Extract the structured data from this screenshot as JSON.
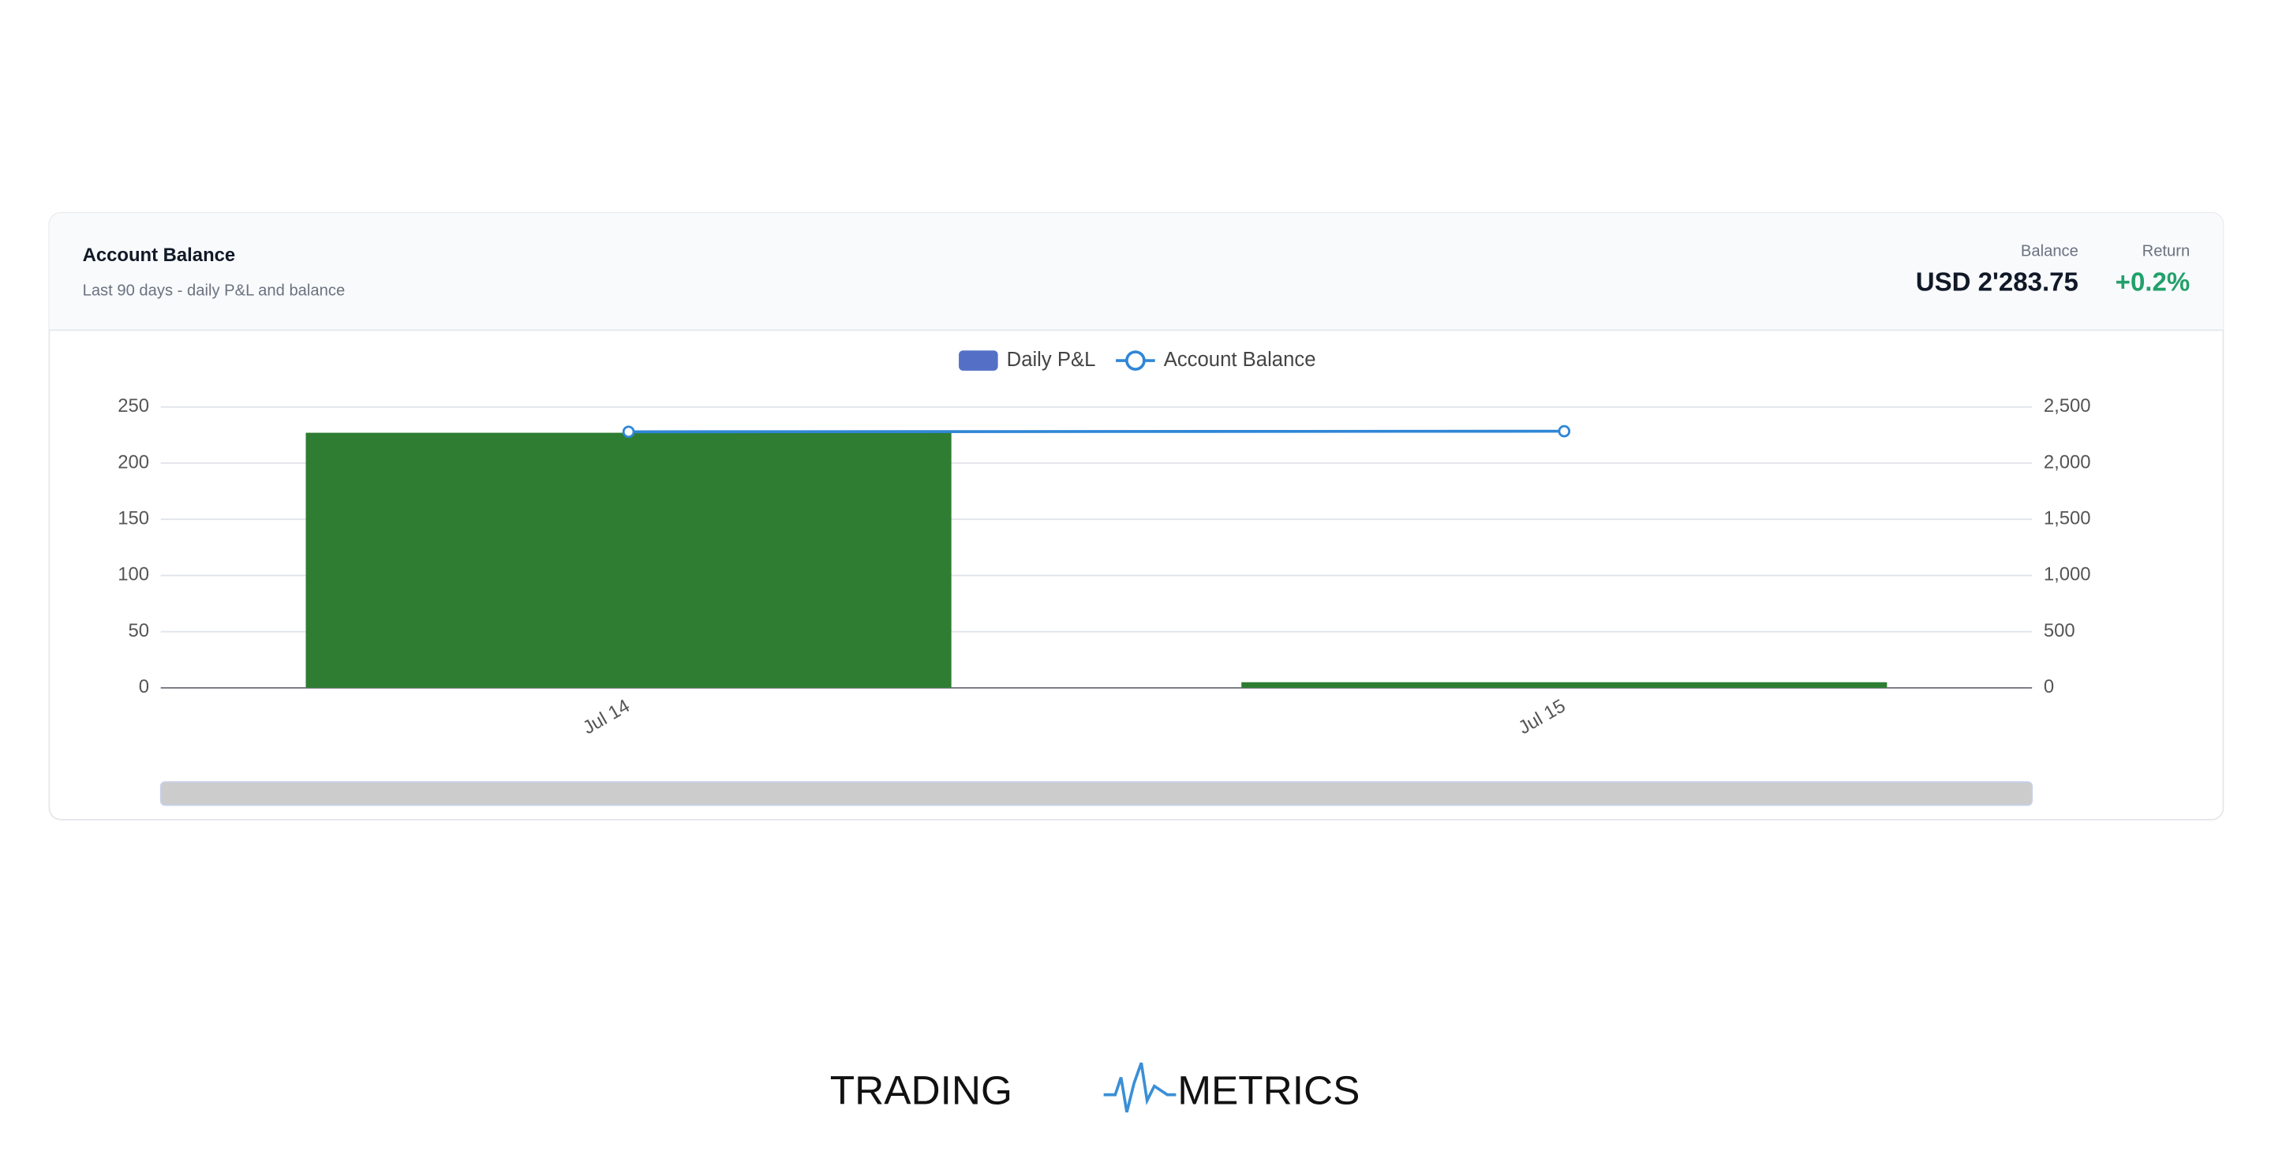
{
  "header": {
    "title": "Account Balance",
    "subtitle": "Last 90 days - daily P&L and balance",
    "stats": [
      {
        "label": "Balance",
        "value": "USD 2'283.75"
      },
      {
        "label": "Return",
        "value": "+0.2%"
      }
    ]
  },
  "chart_data": {
    "type": "bar",
    "categories": [
      "Jul 14",
      "Jul 15"
    ],
    "series": [
      {
        "name": "Daily P&L",
        "type": "bar",
        "color": "#2e7d32",
        "legend_color": "#5470c6",
        "values": [
          227,
          5
        ]
      },
      {
        "name": "Account Balance",
        "type": "line",
        "axis": "y2",
        "color": "#2f86d6",
        "values": [
          2278.5,
          2283.75
        ]
      }
    ],
    "ylim": [
      0,
      250
    ],
    "yticks": [
      0,
      50,
      100,
      150,
      200,
      250
    ],
    "y2lim": [
      0,
      2500
    ],
    "y2ticks": [
      0,
      500,
      {
        "value": 1000,
        "label": "1,000"
      },
      {
        "value": 1500,
        "label": "1,500"
      },
      {
        "value": 2000,
        "label": "2,000"
      },
      {
        "value": 2500,
        "label": "2,500"
      }
    ],
    "grid": true
  },
  "footer": {
    "logo_left": "TRADING",
    "logo_right": "METRICS"
  }
}
